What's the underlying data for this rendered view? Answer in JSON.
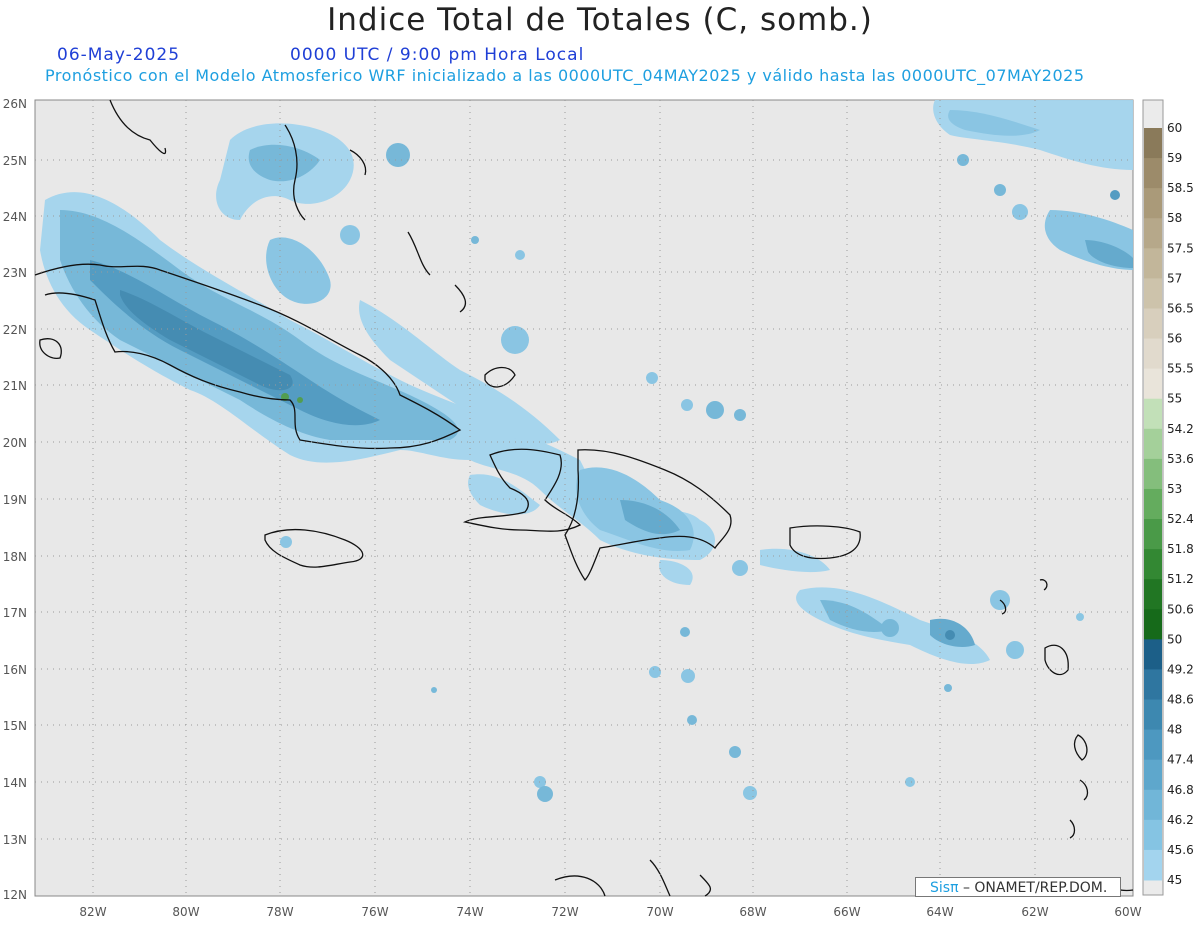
{
  "header": {
    "title": "Indice Total de Totales (C, somb.)",
    "date": "06-May-2025",
    "valid_time": "0000 UTC / 9:00 pm Hora Local",
    "subtitle": "Pronóstico con el Modelo Atmosferico WRF inicializado a las 0000UTC_04MAY2025 y válido hasta las  0000UTC_07MAY2025"
  },
  "map": {
    "lat_labels": [
      "26N",
      "25N",
      "24N",
      "23N",
      "22N",
      "21N",
      "20N",
      "19N",
      "18N",
      "17N",
      "16N",
      "15N",
      "14N",
      "13N",
      "12N"
    ],
    "lon_labels": [
      "82W",
      "80W",
      "78W",
      "76W",
      "74W",
      "72W",
      "70W",
      "68W",
      "66W",
      "64W",
      "62W",
      "60W"
    ],
    "background_color": "#e8e8e8",
    "grid_style": "dotted"
  },
  "colorbar": {
    "levels": [
      "60",
      "59",
      "58.5",
      "58",
      "57.5",
      "57",
      "56.5",
      "56",
      "55.5",
      "55",
      "54.2",
      "53.6",
      "53",
      "52.4",
      "51.8",
      "51.2",
      "50.6",
      "50",
      "49.2",
      "48.6",
      "48",
      "47.4",
      "46.8",
      "46.2",
      "45.6",
      "45"
    ],
    "colors": [
      "#8a7a5a",
      "#9c8b6a",
      "#aa9a79",
      "#b6a88a",
      "#c2b69a",
      "#cdc3ab",
      "#d8cfbd",
      "#e1dacd",
      "#e9e4da",
      "#c2e0b8",
      "#a4d09a",
      "#84be7c",
      "#64ac5e",
      "#4a9a48",
      "#338833",
      "#217623",
      "#166a1a",
      "#1c5f88",
      "#2f76a0",
      "#3d88b0",
      "#4d98c0",
      "#5ea7cc",
      "#71b6d8",
      "#85c4e3",
      "#a3d4ee"
    ]
  },
  "credit": {
    "logo": "Sisπ",
    "text": "– ONAMET/REP.DOM."
  }
}
